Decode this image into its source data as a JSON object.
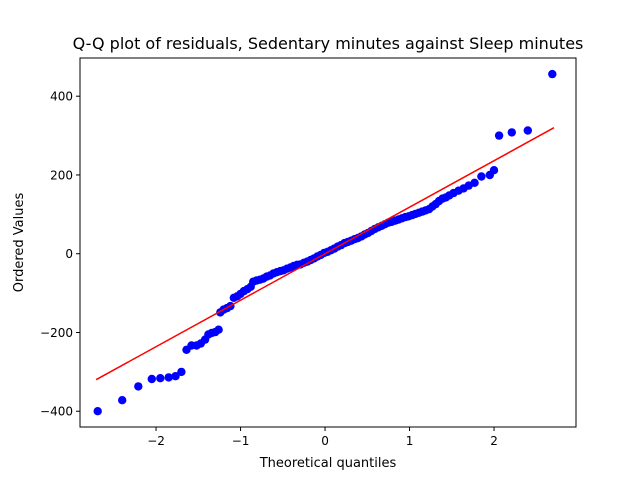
{
  "chart_data": {
    "type": "scatter",
    "title": "Q-Q plot of residuals, Sedentary minutes against Sleep minutes",
    "xlabel": "Theoretical quantiles",
    "ylabel": "Ordered Values",
    "xlim": [
      -2.9,
      2.97
    ],
    "ylim": [
      -440,
      497
    ],
    "xticks": [
      -2,
      -1,
      0,
      1,
      2
    ],
    "yticks": [
      -400,
      -200,
      0,
      200,
      400
    ],
    "xtick_labels": [
      "−2",
      "−1",
      "0",
      "1",
      "2"
    ],
    "ytick_labels": [
      "−400",
      "−200",
      "0",
      "200",
      "400"
    ],
    "grid": false,
    "legend": "none",
    "marker_color": "#0000ff",
    "line_color": "#ff0000",
    "fit_line": {
      "x": [
        -2.71,
        2.71
      ],
      "y": [
        -320,
        320
      ]
    },
    "points": [
      {
        "x": -2.69,
        "y": -400
      },
      {
        "x": -2.4,
        "y": -372
      },
      {
        "x": -2.21,
        "y": -337
      },
      {
        "x": -2.05,
        "y": -318
      },
      {
        "x": -1.95,
        "y": -316
      },
      {
        "x": -1.85,
        "y": -314
      },
      {
        "x": -1.77,
        "y": -311
      },
      {
        "x": -1.7,
        "y": -300
      },
      {
        "x": -1.64,
        "y": -244
      },
      {
        "x": -1.58,
        "y": -233
      },
      {
        "x": -1.52,
        "y": -233
      },
      {
        "x": -1.47,
        "y": -228
      },
      {
        "x": -1.42,
        "y": -218
      },
      {
        "x": -1.38,
        "y": -205
      },
      {
        "x": -1.34,
        "y": -201
      },
      {
        "x": -1.3,
        "y": -199
      },
      {
        "x": -1.26,
        "y": -193
      },
      {
        "x": -1.24,
        "y": -149
      },
      {
        "x": -1.2,
        "y": -142
      },
      {
        "x": -1.16,
        "y": -138
      },
      {
        "x": -1.12,
        "y": -133
      },
      {
        "x": -1.08,
        "y": -112
      },
      {
        "x": -1.04,
        "y": -108
      },
      {
        "x": -1.0,
        "y": -102
      },
      {
        "x": -0.96,
        "y": -95
      },
      {
        "x": -0.92,
        "y": -90
      },
      {
        "x": -0.88,
        "y": -84
      },
      {
        "x": -0.85,
        "y": -71
      },
      {
        "x": -0.81,
        "y": -68
      },
      {
        "x": -0.77,
        "y": -66
      },
      {
        "x": -0.73,
        "y": -63
      },
      {
        "x": -0.69,
        "y": -58
      },
      {
        "x": -0.65,
        "y": -55
      },
      {
        "x": -0.61,
        "y": -50
      },
      {
        "x": -0.57,
        "y": -47
      },
      {
        "x": -0.53,
        "y": -44
      },
      {
        "x": -0.49,
        "y": -42
      },
      {
        "x": -0.45,
        "y": -38
      },
      {
        "x": -0.41,
        "y": -35
      },
      {
        "x": -0.37,
        "y": -31
      },
      {
        "x": -0.33,
        "y": -28
      },
      {
        "x": -0.29,
        "y": -27
      },
      {
        "x": -0.25,
        "y": -23
      },
      {
        "x": -0.21,
        "y": -20
      },
      {
        "x": -0.17,
        "y": -16
      },
      {
        "x": -0.13,
        "y": -12
      },
      {
        "x": -0.09,
        "y": -7
      },
      {
        "x": -0.05,
        "y": -3
      },
      {
        "x": -0.01,
        "y": 2
      },
      {
        "x": 0.03,
        "y": 5
      },
      {
        "x": 0.07,
        "y": 9
      },
      {
        "x": 0.11,
        "y": 13
      },
      {
        "x": 0.15,
        "y": 18
      },
      {
        "x": 0.19,
        "y": 22
      },
      {
        "x": 0.23,
        "y": 27
      },
      {
        "x": 0.27,
        "y": 30
      },
      {
        "x": 0.31,
        "y": 33
      },
      {
        "x": 0.35,
        "y": 37
      },
      {
        "x": 0.39,
        "y": 40
      },
      {
        "x": 0.43,
        "y": 44
      },
      {
        "x": 0.47,
        "y": 49
      },
      {
        "x": 0.51,
        "y": 53
      },
      {
        "x": 0.55,
        "y": 58
      },
      {
        "x": 0.59,
        "y": 63
      },
      {
        "x": 0.63,
        "y": 67
      },
      {
        "x": 0.67,
        "y": 71
      },
      {
        "x": 0.71,
        "y": 75
      },
      {
        "x": 0.75,
        "y": 79
      },
      {
        "x": 0.79,
        "y": 81
      },
      {
        "x": 0.83,
        "y": 84
      },
      {
        "x": 0.87,
        "y": 87
      },
      {
        "x": 0.91,
        "y": 90
      },
      {
        "x": 0.95,
        "y": 93
      },
      {
        "x": 0.99,
        "y": 95
      },
      {
        "x": 1.03,
        "y": 98
      },
      {
        "x": 1.07,
        "y": 101
      },
      {
        "x": 1.11,
        "y": 104
      },
      {
        "x": 1.15,
        "y": 107
      },
      {
        "x": 1.19,
        "y": 110
      },
      {
        "x": 1.23,
        "y": 113
      },
      {
        "x": 1.27,
        "y": 120
      },
      {
        "x": 1.31,
        "y": 126
      },
      {
        "x": 1.35,
        "y": 134
      },
      {
        "x": 1.39,
        "y": 140
      },
      {
        "x": 1.43,
        "y": 143
      },
      {
        "x": 1.47,
        "y": 148
      },
      {
        "x": 1.52,
        "y": 154
      },
      {
        "x": 1.58,
        "y": 160
      },
      {
        "x": 1.64,
        "y": 166
      },
      {
        "x": 1.7,
        "y": 173
      },
      {
        "x": 1.77,
        "y": 180
      },
      {
        "x": 1.85,
        "y": 196
      },
      {
        "x": 1.95,
        "y": 200
      },
      {
        "x": 2.0,
        "y": 212
      },
      {
        "x": 2.06,
        "y": 300
      },
      {
        "x": 2.21,
        "y": 308
      },
      {
        "x": 2.4,
        "y": 313
      },
      {
        "x": 2.69,
        "y": 456
      }
    ]
  }
}
